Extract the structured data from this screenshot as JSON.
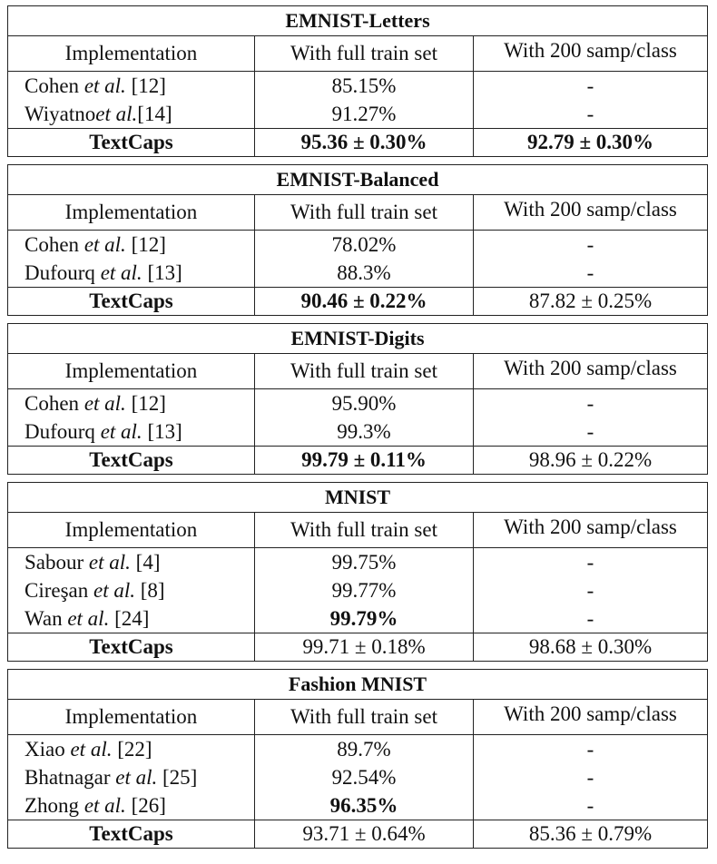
{
  "headers": {
    "implementation": "Implementation",
    "full": "With full train set",
    "samp": "With 200 samp/class"
  },
  "blocks": [
    {
      "title": "EMNIST-Letters",
      "rows": [
        {
          "a": "Cohen ",
          "b": "et al.",
          "c": " [12]",
          "full": "85.15%",
          "samp": "-"
        },
        {
          "a": "Wiyatno",
          "b": "et al.",
          "c": "[14]",
          "full": "91.27%",
          "samp": "-"
        }
      ],
      "textcaps": {
        "name": "TextCaps",
        "full": "95.36 ± 0.30%",
        "samp": "92.79 ± 0.30%"
      }
    },
    {
      "title": "EMNIST-Balanced",
      "rows": [
        {
          "a": "Cohen ",
          "b": "et al.",
          "c": " [12]",
          "full": "78.02%",
          "samp": "-"
        },
        {
          "a": "Dufourq ",
          "b": "et al.",
          "c": " [13]",
          "full": "88.3%",
          "samp": "-"
        }
      ],
      "textcaps": {
        "name": "TextCaps",
        "full": "90.46 ± 0.22%",
        "samp": "87.82 ± 0.25%"
      }
    },
    {
      "title": "EMNIST-Digits",
      "rows": [
        {
          "a": "Cohen ",
          "b": "et al.",
          "c": " [12]",
          "full": "95.90%",
          "samp": "-"
        },
        {
          "a": "Dufourq ",
          "b": "et al.",
          "c": " [13]",
          "full": "99.3%",
          "samp": "-"
        }
      ],
      "textcaps": {
        "name": "TextCaps",
        "full": "99.79 ± 0.11%",
        "samp": "98.96 ± 0.22%"
      }
    },
    {
      "title": "MNIST",
      "rows": [
        {
          "a": "Sabour ",
          "b": "et al.",
          "c": " [4]",
          "full": "99.75%",
          "samp": "-"
        },
        {
          "a": "Cireşan ",
          "b": "et al.",
          "c": " [8]",
          "full": "99.77%",
          "samp": "-"
        },
        {
          "a": "Wan ",
          "b": "et al.",
          "c": " [24]",
          "full": "99.79%",
          "samp": "-"
        }
      ],
      "textcaps": {
        "name": "TextCaps",
        "full": "99.71 ± 0.18%",
        "samp": "98.68 ± 0.30%"
      }
    },
    {
      "title": "Fashion MNIST",
      "rows": [
        {
          "a": "Xiao ",
          "b": "et al.",
          "c": " [22]",
          "full": "89.7%",
          "samp": "-"
        },
        {
          "a": "Bhatnagar ",
          "b": "et al.",
          "c": " [25]",
          "full": "92.54%",
          "samp": "-"
        },
        {
          "a": "Zhong ",
          "b": "et al.",
          "c": " [26]",
          "full": "96.35%",
          "samp": "-"
        }
      ],
      "textcaps": {
        "name": "TextCaps",
        "full": "93.71 ± 0.64%",
        "samp": "85.36 ± 0.79%"
      }
    }
  ]
}
